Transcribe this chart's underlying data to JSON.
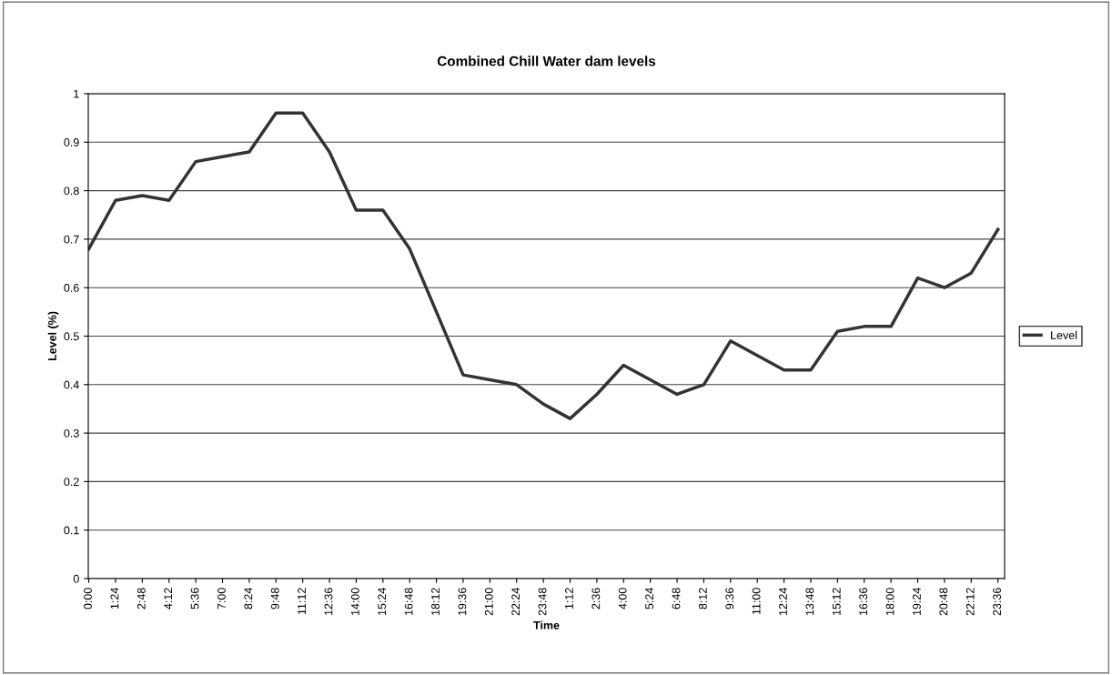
{
  "chart_data": {
    "type": "line",
    "title": "Combined Chill Water dam levels",
    "xlabel": "Time",
    "ylabel": "Level (%)",
    "categories": [
      "0:00",
      "1:24",
      "2:48",
      "4:12",
      "5:36",
      "7:00",
      "8:24",
      "9:48",
      "11:12",
      "12:36",
      "14:00",
      "15:24",
      "16:48",
      "18:12",
      "19:36",
      "21:00",
      "22:24",
      "23:48",
      "1:12",
      "2:36",
      "4:00",
      "5:24",
      "6:48",
      "8:12",
      "9:36",
      "11:00",
      "12:24",
      "13:48",
      "15:12",
      "16:36",
      "18:00",
      "19:24",
      "20:48",
      "22:12",
      "23:36"
    ],
    "series": [
      {
        "name": "Level",
        "color": "#333333",
        "values": [
          0.68,
          0.78,
          0.79,
          0.78,
          0.86,
          0.87,
          0.88,
          0.96,
          0.96,
          0.88,
          0.76,
          0.76,
          0.68,
          0.55,
          0.42,
          0.41,
          0.4,
          0.36,
          0.33,
          0.38,
          0.44,
          0.41,
          0.38,
          0.4,
          0.49,
          0.46,
          0.43,
          0.43,
          0.51,
          0.52,
          0.52,
          0.62,
          0.6,
          0.63,
          0.72
        ]
      }
    ],
    "ylim": [
      0,
      1
    ],
    "yticks": [
      0,
      0.1,
      0.2,
      0.3,
      0.4,
      0.5,
      0.6,
      0.7,
      0.8,
      0.9,
      1
    ],
    "grid": "y",
    "legend": "right",
    "marker": "none",
    "line_style": "solid"
  }
}
